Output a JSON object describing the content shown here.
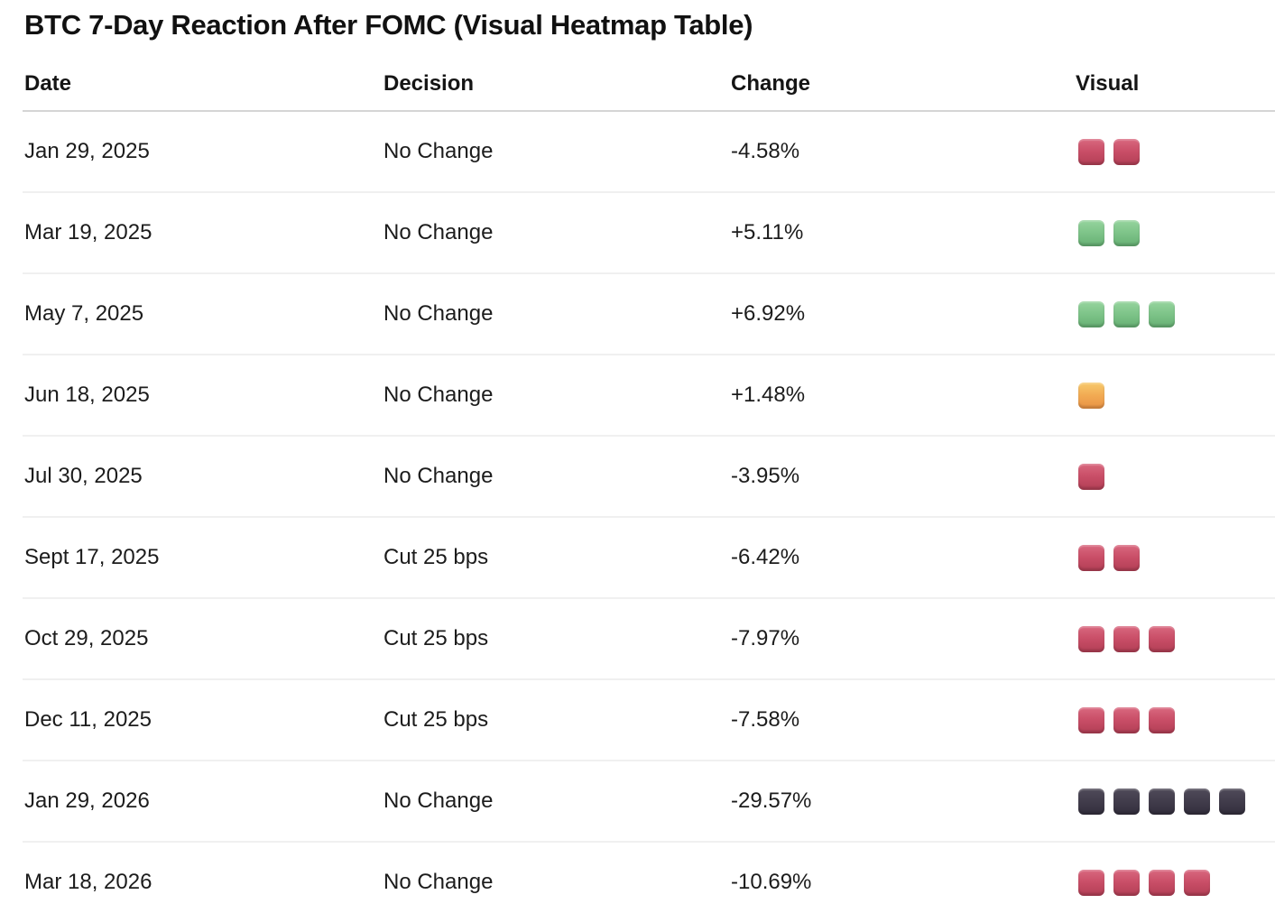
{
  "title": "BTC 7-Day Reaction After FOMC (Visual Heatmap Table)",
  "chart_data": {
    "type": "table",
    "title": "BTC 7-Day Reaction After FOMC (Visual Heatmap Table)",
    "columns": [
      "Date",
      "Decision",
      "Change",
      "Visual"
    ],
    "rows": [
      {
        "date": "Jan 29, 2025",
        "decision": "No Change",
        "change": "-4.58%",
        "change_pct": -4.58,
        "visual": {
          "color": "red",
          "count": 2
        }
      },
      {
        "date": "Mar 19, 2025",
        "decision": "No Change",
        "change": "+5.11%",
        "change_pct": 5.11,
        "visual": {
          "color": "green",
          "count": 2
        }
      },
      {
        "date": "May 7, 2025",
        "decision": "No Change",
        "change": "+6.92%",
        "change_pct": 6.92,
        "visual": {
          "color": "green",
          "count": 3
        }
      },
      {
        "date": "Jun 18, 2025",
        "decision": "No Change",
        "change": "+1.48%",
        "change_pct": 1.48,
        "visual": {
          "color": "orange",
          "count": 1
        }
      },
      {
        "date": "Jul 30, 2025",
        "decision": "No Change",
        "change": "-3.95%",
        "change_pct": -3.95,
        "visual": {
          "color": "red",
          "count": 1
        }
      },
      {
        "date": "Sept 17, 2025",
        "decision": "Cut 25 bps",
        "change": "-6.42%",
        "change_pct": -6.42,
        "visual": {
          "color": "red",
          "count": 2
        }
      },
      {
        "date": "Oct 29, 2025",
        "decision": "Cut 25 bps",
        "change": "-7.97%",
        "change_pct": -7.97,
        "visual": {
          "color": "red",
          "count": 3
        }
      },
      {
        "date": "Dec 11, 2025",
        "decision": "Cut 25 bps",
        "change": "-7.58%",
        "change_pct": -7.58,
        "visual": {
          "color": "red",
          "count": 3
        }
      },
      {
        "date": "Jan 29, 2026",
        "decision": "No Change",
        "change": "-29.57%",
        "change_pct": -29.57,
        "visual": {
          "color": "dark",
          "count": 5
        }
      },
      {
        "date": "Mar 18, 2026",
        "decision": "No Change",
        "change": "-10.69%",
        "change_pct": -10.69,
        "visual": {
          "color": "red",
          "count": 4
        }
      }
    ],
    "legend_hint": "one square per ~2% move; red = down, green = up, orange = small move, dark = large crash"
  },
  "colors": {
    "background": "#ffffff",
    "title_text": "#111111",
    "body_text": "#1c1c1c",
    "header_divider": "#d5d5d5",
    "row_divider": "#f0f0f0",
    "squares": {
      "red": {
        "top": "#d9687f",
        "mid": "#c94e67",
        "bottom": "#b23f55"
      },
      "green": {
        "top": "#96d49e",
        "mid": "#7ec489",
        "bottom": "#66b073"
      },
      "orange": {
        "top": "#f7ca6d",
        "mid": "#f2ab53",
        "bottom": "#e89245"
      },
      "dark": {
        "top": "#504b59",
        "mid": "#423d4c",
        "bottom": "#322e3c"
      }
    }
  }
}
